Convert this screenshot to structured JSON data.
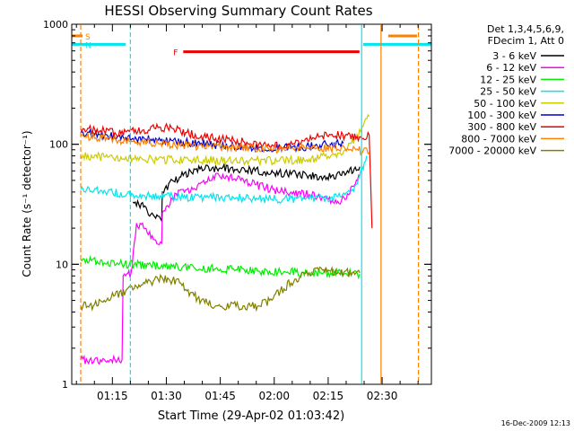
{
  "chart_data": {
    "type": "line",
    "title": "HESSI Observing Summary Count Rates",
    "xlabel": "Start Time (29-Apr-02 01:03:42)",
    "ylabel": "Count Rate (s⁻¹ detector⁻¹)",
    "yscale": "log",
    "ylim": [
      1,
      1000
    ],
    "xlim_minutes_from_start": [
      0,
      100
    ],
    "x_unit": "minutes after 01:03:42",
    "x_ticks": [
      {
        "label": "01:15",
        "t": 11.3
      },
      {
        "label": "01:30",
        "t": 26.3
      },
      {
        "label": "01:45",
        "t": 41.3
      },
      {
        "label": "02:00",
        "t": 56.3
      },
      {
        "label": "02:15",
        "t": 71.3
      },
      {
        "label": "02:30",
        "t": 86.3
      }
    ],
    "y_ticks": [
      {
        "label": "1",
        "v": 1
      },
      {
        "label": "10",
        "v": 10
      },
      {
        "label": "100",
        "v": 100
      },
      {
        "label": "1000",
        "v": 1000
      }
    ],
    "legend_header": [
      "Det 1,3,4,5,6,9,",
      "FDecim 1, Att 0"
    ],
    "legend_placement": "right",
    "timestamp": "16-Dec-2009 12:13",
    "flags": [
      {
        "label": "S",
        "color": "#ff8000",
        "y": 800,
        "segments": [
          [
            0,
            3
          ],
          [
            88,
            96
          ]
        ]
      },
      {
        "label": "N",
        "color": "#00e5ee",
        "y": 680,
        "segments": [
          [
            0,
            15
          ],
          [
            81,
            100
          ]
        ]
      },
      {
        "label": "F",
        "color": "#ee0000",
        "y": 590,
        "segments": [
          [
            31,
            80
          ]
        ]
      }
    ],
    "vlines": [
      {
        "t": 2.5,
        "color": "#ff8000",
        "dash": true
      },
      {
        "t": 16.3,
        "color": "#00e5ee",
        "dash": true
      },
      {
        "t": 80.6,
        "color": "#00e5ee",
        "dash": false
      },
      {
        "t": 86.0,
        "color": "#ff8000",
        "dash": false
      },
      {
        "t": 96.4,
        "color": "#ff8000",
        "dash": true
      }
    ],
    "series": [
      {
        "name": "3 - 6 keV",
        "color": "#000000",
        "x": [
          17,
          20,
          23,
          25,
          25.2,
          28,
          31,
          33,
          36,
          41,
          46,
          51,
          56,
          61,
          66,
          71,
          75,
          77,
          78.5,
          80.1
        ],
        "y": [
          33,
          30,
          25,
          23,
          40,
          50,
          55,
          60,
          65,
          63,
          62,
          60,
          58,
          56,
          55,
          53,
          55,
          58,
          62,
          65
        ]
      },
      {
        "name": "6 - 12 keV",
        "color": "#ff00ff",
        "x": [
          2.5,
          5,
          8,
          11,
          14,
          14.3,
          16.5,
          18,
          20,
          23,
          25,
          25.2,
          28,
          31,
          33,
          36,
          41,
          46,
          51,
          56,
          61,
          66,
          71,
          75,
          77,
          78.5,
          80.1
        ],
        "y": [
          1.6,
          1.6,
          1.6,
          1.6,
          1.6,
          8,
          8.5,
          22,
          20,
          16,
          15,
          27,
          35,
          42,
          40,
          48,
          55,
          52,
          46,
          42,
          40,
          38,
          35,
          34,
          38,
          45,
          55
        ]
      },
      {
        "name": "12 - 25 keV",
        "color": "#00ee00",
        "x": [
          2.5,
          10,
          16,
          22,
          28,
          34,
          40,
          46,
          52,
          58,
          64,
          70,
          76,
          80.1
        ],
        "y": [
          11,
          10.5,
          10,
          9.8,
          9.6,
          9.4,
          9.2,
          9,
          8.8,
          8.7,
          8.6,
          8.5,
          8.4,
          8.3
        ]
      },
      {
        "name": "25 - 50 keV",
        "color": "#00e5ee",
        "x": [
          2.5,
          10,
          17,
          24,
          31,
          38,
          45,
          52,
          59,
          66,
          72,
          76,
          78,
          80.1,
          82
        ],
        "y": [
          42,
          40,
          38,
          37,
          36,
          36,
          36,
          35,
          35,
          35,
          36,
          38,
          42,
          55,
          80
        ]
      },
      {
        "name": "50 - 100 keV",
        "color": "#cccc00",
        "x": [
          2.5,
          10,
          17,
          24,
          31,
          38,
          45,
          52,
          59,
          66,
          72,
          76,
          79,
          81,
          82.7
        ],
        "y": [
          80,
          78,
          76,
          75,
          74,
          74,
          73,
          73,
          73,
          75,
          80,
          90,
          110,
          140,
          170
        ]
      },
      {
        "name": "100 - 300 keV",
        "color": "#0000cc",
        "x": [
          2.5,
          10,
          17,
          24,
          31,
          38,
          45,
          52,
          59,
          66,
          72,
          75.5
        ],
        "y": [
          125,
          118,
          112,
          108,
          104,
          100,
          96,
          94,
          94,
          96,
          100,
          102
        ]
      },
      {
        "name": "300 - 800 keV",
        "color": "#ee0000",
        "x": [
          2.5,
          8,
          12,
          16,
          20,
          24,
          28,
          32,
          36,
          40,
          44,
          48,
          52,
          56,
          60,
          64,
          68,
          72,
          76,
          80,
          82.7,
          83.5
        ],
        "y": [
          135,
          130,
          125,
          128,
          132,
          138,
          135,
          125,
          118,
          112,
          108,
          104,
          100,
          98,
          100,
          108,
          115,
          120,
          118,
          115,
          120,
          20
        ]
      },
      {
        "name": "800 - 7000 keV",
        "color": "#ff8000",
        "x": [
          2.5,
          10,
          17,
          24,
          31,
          38,
          45,
          52,
          59,
          66,
          72,
          76,
          79,
          81,
          82.7
        ],
        "y": [
          118,
          110,
          105,
          102,
          98,
          96,
          94,
          92,
          92,
          92,
          92,
          92,
          90,
          88,
          85
        ]
      },
      {
        "name": "7000 - 20000 keV",
        "color": "#808000",
        "x": [
          2.5,
          6,
          9,
          12,
          15,
          18,
          21,
          24,
          27,
          30,
          32,
          36,
          40,
          44,
          48,
          52,
          55,
          58,
          62,
          66,
          70,
          74,
          78,
          80.1
        ],
        "y": [
          4.5,
          4.5,
          5,
          5.5,
          6,
          6.5,
          7,
          7.5,
          7.5,
          7,
          6,
          5,
          4.5,
          4.5,
          4.5,
          4.5,
          5,
          6,
          7.5,
          8.5,
          9,
          8.5,
          8.5,
          8.5
        ]
      }
    ]
  }
}
